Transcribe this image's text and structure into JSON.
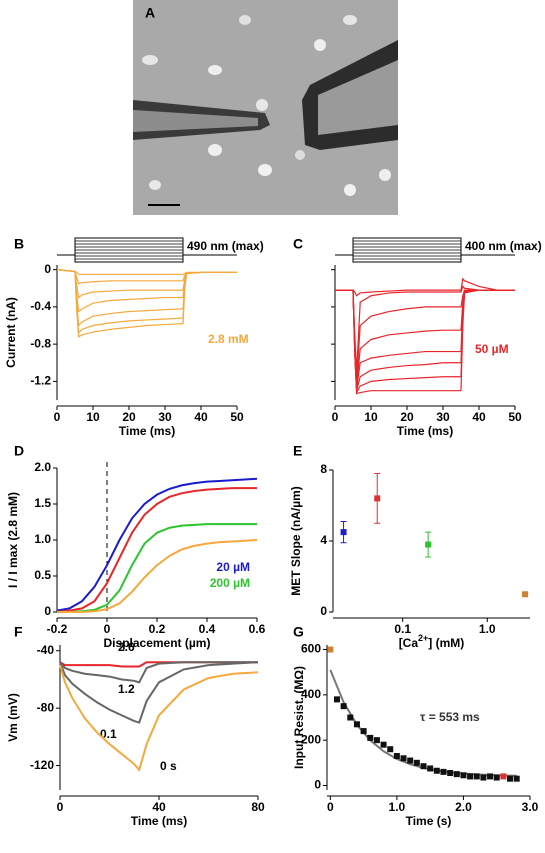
{
  "panel_a": {
    "label": "A"
  },
  "chart_data": [
    {
      "type": "line",
      "panel": "B",
      "xlabel": "Time (ms)",
      "ylabel": "Current (nA)",
      "xlim": [
        0,
        50
      ],
      "ylim": [
        -1.4,
        0.05
      ],
      "xticks": [
        0,
        10,
        20,
        30,
        40,
        50
      ],
      "yticks": [
        0,
        -0.4,
        -0.8,
        -1.2
      ],
      "annotations": [
        {
          "text": "490 nm (max)",
          "color": "#000000"
        },
        {
          "text": "2.8 mM",
          "color": "#f5a83c"
        }
      ],
      "x": [
        0,
        5,
        5.5,
        6,
        7,
        10,
        15,
        20,
        25,
        30,
        35,
        35.5,
        36,
        40,
        45,
        50
      ],
      "series": [
        {
          "color": "#f5a83c",
          "values": [
            0,
            -0.02,
            -0.45,
            -0.72,
            -0.7,
            -0.67,
            -0.64,
            -0.62,
            -0.6,
            -0.59,
            -0.58,
            -0.2,
            -0.04,
            -0.03,
            -0.03,
            -0.03
          ]
        },
        {
          "color": "#f5a83c",
          "values": [
            0,
            -0.02,
            -0.42,
            -0.68,
            -0.64,
            -0.6,
            -0.57,
            -0.55,
            -0.54,
            -0.53,
            -0.52,
            -0.18,
            -0.04,
            -0.03,
            -0.03,
            -0.03
          ]
        },
        {
          "color": "#f5a83c",
          "values": [
            0,
            -0.02,
            -0.36,
            -0.6,
            -0.56,
            -0.5,
            -0.47,
            -0.45,
            -0.44,
            -0.43,
            -0.42,
            -0.15,
            -0.04,
            -0.03,
            -0.03,
            -0.03
          ]
        },
        {
          "color": "#f5a83c",
          "values": [
            0,
            -0.02,
            -0.28,
            -0.45,
            -0.42,
            -0.36,
            -0.33,
            -0.32,
            -0.31,
            -0.3,
            -0.3,
            -0.12,
            -0.04,
            -0.03,
            -0.03,
            -0.03
          ]
        },
        {
          "color": "#f5a83c",
          "values": [
            0,
            -0.02,
            -0.18,
            -0.3,
            -0.27,
            -0.24,
            -0.23,
            -0.22,
            -0.22,
            -0.22,
            -0.22,
            -0.1,
            -0.04,
            -0.03,
            -0.03,
            -0.03
          ]
        },
        {
          "color": "#f5a83c",
          "values": [
            0,
            -0.02,
            -0.09,
            -0.15,
            -0.14,
            -0.13,
            -0.12,
            -0.12,
            -0.12,
            -0.12,
            -0.12,
            -0.06,
            -0.03,
            -0.03,
            -0.03,
            -0.03
          ]
        },
        {
          "color": "#f5a83c",
          "values": [
            0,
            -0.02,
            -0.03,
            -0.05,
            -0.05,
            -0.05,
            -0.05,
            -0.05,
            -0.05,
            -0.05,
            -0.05,
            -0.04,
            -0.03,
            -0.03,
            -0.03,
            -0.03
          ]
        }
      ]
    },
    {
      "type": "line",
      "panel": "C",
      "xlabel": "Time (ms)",
      "show_ytick_labels": false,
      "xlim": [
        0,
        50
      ],
      "ylim": [
        -1.4,
        0.05
      ],
      "xticks": [
        0,
        10,
        20,
        30,
        40,
        50
      ],
      "yticks": [
        0,
        -0.4,
        -0.8,
        -1.2
      ],
      "annotations": [
        {
          "text": "400 nm (max)",
          "color": "#000000"
        },
        {
          "text": "50 µM",
          "color": "#e8262a"
        }
      ],
      "x": [
        0,
        5,
        5.5,
        6,
        7,
        10,
        15,
        20,
        25,
        30,
        35,
        35.5,
        36,
        40,
        45,
        50
      ],
      "series": [
        {
          "color": "#e8262a",
          "values": [
            -0.22,
            -0.22,
            -0.9,
            -1.33,
            -1.32,
            -1.3,
            -1.3,
            -1.3,
            -1.3,
            -1.3,
            -1.3,
            -0.6,
            -0.25,
            -0.22,
            -0.22,
            -0.22
          ]
        },
        {
          "color": "#e8262a",
          "values": [
            -0.22,
            -0.22,
            -0.9,
            -1.32,
            -1.25,
            -1.2,
            -1.18,
            -1.17,
            -1.16,
            -1.15,
            -1.15,
            -0.5,
            -0.24,
            -0.22,
            -0.22,
            -0.22
          ]
        },
        {
          "color": "#e8262a",
          "values": [
            -0.22,
            -0.22,
            -0.9,
            -1.3,
            -1.15,
            -1.08,
            -1.05,
            -1.03,
            -1.02,
            -1.0,
            -1.0,
            -0.45,
            -0.23,
            -0.22,
            -0.22,
            -0.22
          ]
        },
        {
          "color": "#e8262a",
          "values": [
            -0.22,
            -0.22,
            -0.88,
            -1.28,
            -1.0,
            -0.95,
            -0.92,
            -0.9,
            -0.88,
            -0.88,
            -0.88,
            -0.4,
            -0.23,
            -0.22,
            -0.22,
            -0.22
          ]
        },
        {
          "color": "#e8262a",
          "values": [
            -0.22,
            -0.22,
            -0.85,
            -1.25,
            -0.85,
            -0.75,
            -0.7,
            -0.68,
            -0.66,
            -0.65,
            -0.65,
            -0.35,
            -0.22,
            -0.22,
            -0.22,
            -0.22
          ]
        },
        {
          "color": "#e8262a",
          "values": [
            -0.22,
            -0.22,
            -0.8,
            -1.2,
            -0.6,
            -0.5,
            -0.45,
            -0.42,
            -0.4,
            -0.4,
            -0.4,
            -0.28,
            -0.22,
            -0.22,
            -0.22,
            -0.22
          ]
        },
        {
          "color": "#e8262a",
          "values": [
            -0.22,
            -0.22,
            -0.7,
            -1.1,
            -0.35,
            -0.28,
            -0.25,
            -0.24,
            -0.24,
            -0.24,
            -0.24,
            -0.18,
            -0.2,
            -0.22,
            -0.22,
            -0.22
          ]
        },
        {
          "color": "#e8262a",
          "values": [
            -0.22,
            -0.22,
            -0.24,
            -0.28,
            -0.25,
            -0.24,
            -0.23,
            -0.22,
            -0.22,
            -0.22,
            -0.22,
            -0.1,
            -0.12,
            -0.18,
            -0.22,
            -0.22
          ]
        }
      ]
    },
    {
      "type": "line",
      "panel": "D",
      "xlabel": "Displacement (µm)",
      "ylabel": "I / I max (2.8 mM)",
      "legend": "lower right",
      "vline": 0,
      "xlim": [
        -0.2,
        0.6
      ],
      "ylim": [
        0,
        2
      ],
      "xticks": [
        -0.2,
        0,
        0.2,
        0.4,
        0.6
      ],
      "yticks": [
        0,
        0.5,
        {
          "value": 1,
          "label": "1.0"
        },
        1.5,
        {
          "value": 2,
          "label": "2.0"
        }
      ],
      "x": [
        -0.2,
        -0.15,
        -0.1,
        -0.05,
        0,
        0.05,
        0.1,
        0.15,
        0.2,
        0.25,
        0.3,
        0.35,
        0.4,
        0.45,
        0.5,
        0.55,
        0.6
      ],
      "series": [
        {
          "name": "20 µM",
          "color": "#1a1ad0",
          "values": [
            0.02,
            0.05,
            0.15,
            0.35,
            0.65,
            1.0,
            1.3,
            1.5,
            1.63,
            1.71,
            1.76,
            1.79,
            1.81,
            1.82,
            1.83,
            1.84,
            1.85
          ]
        },
        {
          "color": "#e8262a",
          "values": [
            0,
            0.02,
            0.05,
            0.15,
            0.4,
            0.75,
            1.1,
            1.35,
            1.5,
            1.6,
            1.65,
            1.68,
            1.7,
            1.71,
            1.72,
            1.72,
            1.72
          ]
        },
        {
          "name": "200 µM",
          "color": "#2ec42e",
          "values": [
            0,
            0,
            0.01,
            0.03,
            0.1,
            0.3,
            0.65,
            0.95,
            1.1,
            1.17,
            1.2,
            1.21,
            1.22,
            1.22,
            1.22,
            1.22,
            1.22
          ]
        },
        {
          "color": "#f5a83c",
          "values": [
            0,
            0,
            0,
            0.01,
            0.04,
            0.12,
            0.28,
            0.48,
            0.65,
            0.78,
            0.87,
            0.92,
            0.95,
            0.97,
            0.98,
            0.99,
            1.0
          ]
        }
      ]
    },
    {
      "type": "scatter",
      "panel": "E",
      "xlabel_parts": [
        "[Ca",
        "2+",
        "] (mM)"
      ],
      "ylabel": "MET Slope (nA/µm)",
      "xlog": true,
      "xlim": [
        0.015,
        3.2
      ],
      "ylim": [
        0,
        8
      ],
      "xticks": [
        0.1,
        {
          "value": 1,
          "label": "1.0"
        }
      ],
      "yticks": [
        0,
        4,
        8
      ],
      "series": [
        {
          "color": "#2020c0",
          "x": [
            0.02
          ],
          "values": [
            4.5
          ],
          "errors": [
            0.6
          ]
        },
        {
          "color": "#e03030",
          "x": [
            0.05
          ],
          "values": [
            6.4
          ],
          "errors": [
            1.4
          ]
        },
        {
          "color": "#30c030",
          "x": [
            0.2
          ],
          "values": [
            3.8
          ],
          "errors": [
            0.7
          ]
        },
        {
          "color": "#d08030",
          "x": [
            2.8
          ],
          "values": [
            1.0
          ],
          "errors": [
            0.1
          ]
        }
      ]
    },
    {
      "type": "line",
      "panel": "F",
      "xlabel": "Time (ms)",
      "ylabel": "Vm (mV)",
      "legend": "inline",
      "xlim": [
        0,
        80
      ],
      "ylim": [
        -137,
        -36
      ],
      "xticks": [
        0,
        40,
        80
      ],
      "yticks": [
        -40,
        -80,
        -120
      ],
      "x": [
        0,
        2,
        5,
        10,
        15,
        20,
        25,
        30,
        32,
        35,
        40,
        50,
        60,
        70,
        80
      ],
      "series": [
        {
          "name": "2.6",
          "color": "#e8262a",
          "values": [
            -48,
            -50,
            -50,
            -50,
            -50,
            -50,
            -51,
            -51,
            -51,
            -48,
            -48,
            -48,
            -48,
            -48,
            -48
          ]
        },
        {
          "name": "1.2",
          "color": "#666666",
          "values": [
            -48,
            -52,
            -54,
            -56,
            -57,
            -58,
            -60,
            -61,
            -62,
            -52,
            -49,
            -48,
            -48,
            -48,
            -48
          ]
        },
        {
          "name": "0.1",
          "color": "#666666",
          "values": [
            -48,
            -57,
            -63,
            -70,
            -76,
            -81,
            -85,
            -89,
            -90,
            -75,
            -62,
            -53,
            -50,
            -49,
            -48
          ]
        },
        {
          "name": "0 s",
          "color": "#f5a83c",
          "values": [
            -50,
            -62,
            -73,
            -87,
            -97,
            -105,
            -112,
            -119,
            -123,
            -105,
            -85,
            -67,
            -59,
            -56,
            -55
          ]
        }
      ]
    },
    {
      "type": "scatter",
      "panel": "G",
      "xlabel": "Time (s)",
      "ylabel": "Input Resist. (MΩ)",
      "annotations": [
        {
          "text": "τ = 553 ms",
          "color": "#333333"
        }
      ],
      "xlim": [
        -0.05,
        3.0
      ],
      "ylim": [
        -20,
        620
      ],
      "xticks": [
        0,
        {
          "value": 1,
          "label": "1.0"
        },
        {
          "value": 2,
          "label": "2.0"
        },
        {
          "value": 3,
          "label": "3.0"
        }
      ],
      "yticks": [
        0,
        200,
        400,
        600
      ],
      "series": [
        {
          "mode": "line",
          "color": "#777777",
          "x": [
            0,
            0.2,
            0.4,
            0.6,
            0.8,
            1.0,
            1.2,
            1.4,
            1.6,
            1.8,
            2.0,
            2.2,
            2.4,
            2.6,
            2.8
          ],
          "values": [
            510,
            367,
            268,
            199,
            151,
            117,
            94,
            77,
            66,
            58,
            53,
            49,
            46,
            44,
            43
          ]
        },
        {
          "color": "#111111",
          "x": [
            0.1,
            0.2,
            0.3,
            0.4,
            0.5,
            0.6,
            0.7,
            0.8,
            0.9,
            1.0,
            1.1,
            1.2,
            1.3,
            1.4,
            1.5,
            1.6,
            1.7,
            1.8,
            1.9,
            2.0,
            2.1,
            2.2,
            2.3,
            2.4,
            2.5,
            2.7,
            2.8
          ],
          "values": [
            380,
            350,
            300,
            270,
            240,
            210,
            200,
            180,
            160,
            130,
            120,
            110,
            100,
            85,
            75,
            65,
            60,
            55,
            50,
            45,
            40,
            40,
            35,
            40,
            35,
            30,
            30
          ]
        },
        {
          "color": "#d08030",
          "x": [
            0
          ],
          "values": [
            600
          ]
        },
        {
          "color": "#e03030",
          "x": [
            2.6
          ],
          "values": [
            40
          ]
        }
      ]
    }
  ]
}
